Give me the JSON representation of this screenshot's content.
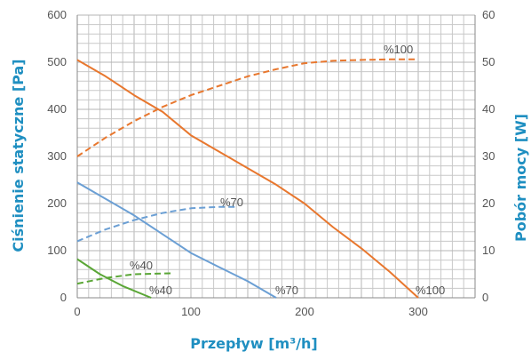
{
  "chart_data": {
    "type": "line",
    "x_axis": {
      "label": "Przepływ [m³/h]",
      "min": 0,
      "max": 350,
      "ticks": [
        0,
        100,
        200,
        300
      ]
    },
    "y_left": {
      "label": "Ciśnienie statyczne [Pa]",
      "min": 0,
      "max": 600,
      "ticks": [
        0,
        100,
        200,
        300,
        400,
        500,
        600
      ]
    },
    "y_right": {
      "label": "Pobór mocy [W]",
      "min": 0,
      "max": 60,
      "ticks": [
        0,
        10,
        20,
        30,
        40,
        50,
        60
      ]
    },
    "grid": true,
    "series": [
      {
        "name": "%100",
        "kind": "pressure",
        "axis": "left",
        "color": "#e8772e",
        "dashed": false,
        "x": [
          0,
          25,
          50,
          75,
          100,
          125,
          150,
          175,
          200,
          225,
          250,
          275,
          300
        ],
        "y": [
          505,
          470,
          430,
          395,
          345,
          310,
          275,
          240,
          200,
          150,
          105,
          55,
          0
        ]
      },
      {
        "name": "%100",
        "kind": "power",
        "axis": "right",
        "color": "#e8772e",
        "dashed": true,
        "x": [
          0,
          25,
          50,
          75,
          100,
          125,
          150,
          175,
          200,
          225,
          250,
          275,
          300
        ],
        "y": [
          30,
          34,
          37.5,
          40.5,
          43,
          45,
          47,
          48.5,
          49.8,
          50.3,
          50.5,
          50.6,
          50.6
        ]
      },
      {
        "name": "%70",
        "kind": "pressure",
        "axis": "left",
        "color": "#6b9fd4",
        "dashed": false,
        "x": [
          0,
          25,
          50,
          75,
          100,
          125,
          150,
          175
        ],
        "y": [
          245,
          210,
          175,
          135,
          95,
          65,
          35,
          0
        ]
      },
      {
        "name": "%70",
        "kind": "power",
        "axis": "right",
        "color": "#6b9fd4",
        "dashed": true,
        "x": [
          0,
          25,
          50,
          75,
          100,
          125,
          140
        ],
        "y": [
          12,
          14.5,
          16.5,
          18,
          19,
          19.3,
          19.3
        ]
      },
      {
        "name": "%40",
        "kind": "pressure",
        "axis": "left",
        "color": "#5aa636",
        "dashed": false,
        "x": [
          0,
          20,
          40,
          65
        ],
        "y": [
          82,
          50,
          25,
          0
        ]
      },
      {
        "name": "%40",
        "kind": "power",
        "axis": "right",
        "color": "#5aa636",
        "dashed": true,
        "x": [
          0,
          25,
          50,
          85
        ],
        "y": [
          3,
          4.2,
          5,
          5.2
        ]
      }
    ]
  }
}
